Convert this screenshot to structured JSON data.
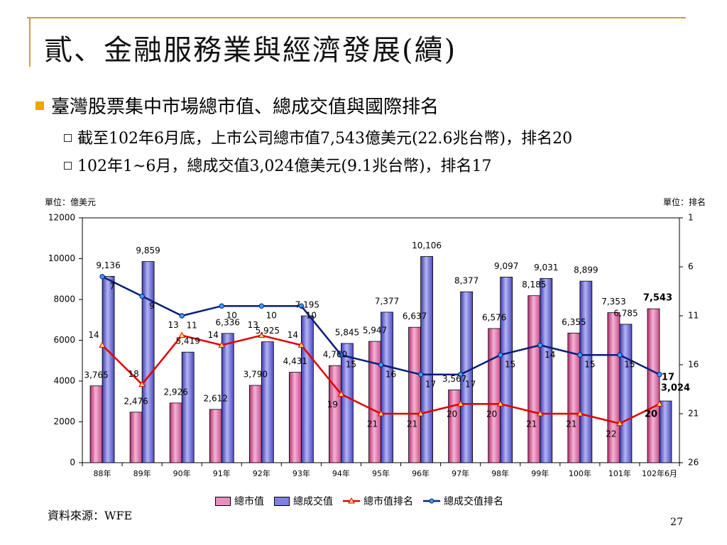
{
  "slide": {
    "title": "貳、金融服務業與經濟發展(續)",
    "bullet_main": "臺灣股票集中市場總市值、總成交值與國際排名",
    "bullet_sub1": "截至102年6月底，上市公司總市值7,543億美元(22.6兆台幣)，排名20",
    "bullet_sub2": "102年1~6月，總成交值3,024億美元(9.1兆台幣)，排名17",
    "unit_left": "單位：億美元",
    "unit_right": "單位：排名",
    "source": "資料來源：WFE",
    "page_number": "27"
  },
  "colors": {
    "frame": "#c9a046",
    "bullet": "#f0a500",
    "market_cap_bar": "#e88fc0",
    "trading_value_bar": "#8080e0",
    "market_cap_rank_line": "#e00000",
    "trading_value_rank_line": "#0a1f7a"
  },
  "chart_data": {
    "type": "bar",
    "categories": [
      "88年",
      "89年",
      "90年",
      "91年",
      "92年",
      "93年",
      "94年",
      "95年",
      "96年",
      "97年",
      "98年",
      "99年",
      "100年",
      "101年",
      "102年6月"
    ],
    "series": [
      {
        "name": "總市值",
        "type": "bar",
        "axis": "left",
        "values": [
          3765,
          2476,
          2926,
          2612,
          3790,
          4431,
          4760,
          5947,
          6637,
          3567,
          6576,
          8185,
          6355,
          7353,
          7543
        ]
      },
      {
        "name": "總成交值",
        "type": "bar",
        "axis": "left",
        "values": [
          9136,
          9859,
          5419,
          6336,
          5925,
          7195,
          5845,
          7377,
          10106,
          8377,
          9097,
          9031,
          8899,
          6785,
          3024
        ]
      },
      {
        "name": "總市值排名",
        "type": "line",
        "axis": "right",
        "values": [
          14,
          18,
          13,
          14,
          13,
          14,
          19,
          21,
          21,
          20,
          20,
          21,
          21,
          22,
          20
        ]
      },
      {
        "name": "總成交值排名",
        "type": "line",
        "axis": "right",
        "values": [
          7,
          9,
          11,
          10,
          10,
          10,
          15,
          16,
          17,
          17,
          15,
          14,
          15,
          15,
          17
        ]
      }
    ],
    "ylim_left": [
      0,
      12000
    ],
    "yticks_left": [
      "0",
      "2000",
      "4000",
      "6000",
      "8000",
      "10000",
      "12000"
    ],
    "ylim_right": [
      1,
      26
    ],
    "right_axis_inverted": true,
    "yticks_right": [
      "1",
      "6",
      "11",
      "16",
      "21",
      "26"
    ],
    "legend_position": "bottom"
  }
}
